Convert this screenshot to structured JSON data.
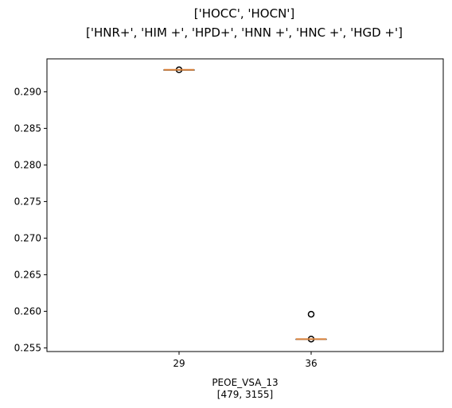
{
  "chart_data": {
    "type": "box",
    "title": "['HOCC', 'HOCN']",
    "subtitle": "['HNR+', 'HIM +', 'HPD+', 'HNN +', 'HNC +', 'HGD +']",
    "xlabel": "PEOE_VSA_13",
    "xlabel_sub": "[479, 3155]",
    "ylabel": "",
    "ylim": [
      0.2545,
      0.2945
    ],
    "yticks": [
      0.255,
      0.26,
      0.265,
      0.27,
      0.275,
      0.28,
      0.285,
      0.29
    ],
    "ytick_labels": [
      "0.255",
      "0.260",
      "0.265",
      "0.270",
      "0.275",
      "0.280",
      "0.285",
      "0.290"
    ],
    "categories": [
      "29",
      "36"
    ],
    "boxes": [
      {
        "category": "29",
        "q1": 0.293,
        "median": 0.293,
        "q3": 0.293,
        "whisker_low": 0.293,
        "whisker_high": 0.293,
        "outliers": [
          0.293
        ]
      },
      {
        "category": "36",
        "q1": 0.2562,
        "median": 0.2562,
        "q3": 0.2562,
        "whisker_low": 0.2562,
        "whisker_high": 0.2562,
        "outliers": [
          0.2562,
          0.2596
        ]
      }
    ],
    "grid": false,
    "colors": {
      "median": "#d9823b",
      "box": "#000000",
      "outlier": "#000000"
    }
  }
}
